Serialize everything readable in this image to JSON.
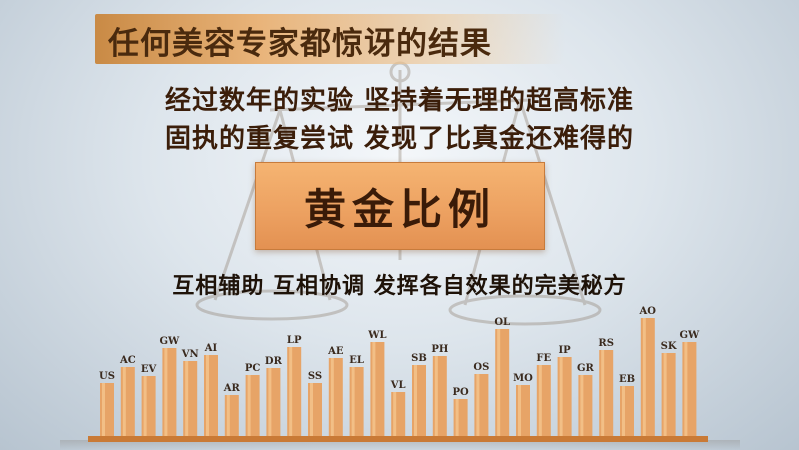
{
  "headline": "任何美容专家都惊讶的结果",
  "lines": [
    "经过数年的实验  坚持着无理的超高标准",
    "固执的重复尝试  发现了比真金还难得的"
  ],
  "gold_box": {
    "label": "黄金比例"
  },
  "subline": "互相辅助  互相协调  发挥各自效果的完美秘方",
  "colors": {
    "bar": "#e7a467",
    "bar_light": "#f2bf86",
    "label": "#3a2a1e",
    "base": "#c97a36"
  },
  "bars": [
    {
      "label": "US",
      "value": 55
    },
    {
      "label": "AC",
      "value": 71
    },
    {
      "label": "EV",
      "value": 62
    },
    {
      "label": "GW",
      "value": 90
    },
    {
      "label": "VN",
      "value": 77
    },
    {
      "label": "AI",
      "value": 83
    },
    {
      "label": "AR",
      "value": 43
    },
    {
      "label": "PC",
      "value": 63
    },
    {
      "label": "DR",
      "value": 70
    },
    {
      "label": "LP",
      "value": 91
    },
    {
      "label": "SS",
      "value": 55
    },
    {
      "label": "AE",
      "value": 80
    },
    {
      "label": "EL",
      "value": 71
    },
    {
      "label": "WL",
      "value": 96
    },
    {
      "label": "VL",
      "value": 46
    },
    {
      "label": "SB",
      "value": 73
    },
    {
      "label": "PH",
      "value": 82
    },
    {
      "label": "PO",
      "value": 39
    },
    {
      "label": "OS",
      "value": 64
    },
    {
      "label": "OL",
      "value": 109
    },
    {
      "label": "MO",
      "value": 53
    },
    {
      "label": "FE",
      "value": 73
    },
    {
      "label": "IP",
      "value": 81
    },
    {
      "label": "GR",
      "value": 63
    },
    {
      "label": "RS",
      "value": 88
    },
    {
      "label": "EB",
      "value": 52
    },
    {
      "label": "AO",
      "value": 120
    },
    {
      "label": "SK",
      "value": 85
    },
    {
      "label": "GW",
      "value": 96
    }
  ]
}
